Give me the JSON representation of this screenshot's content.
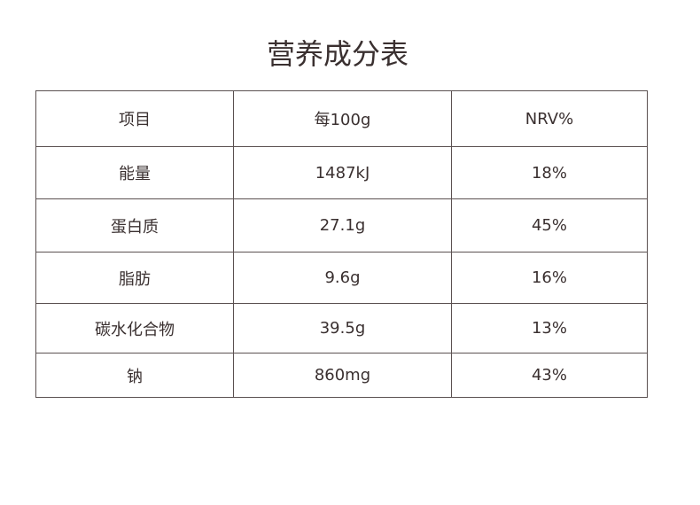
{
  "header": {
    "title": "营养成分表"
  },
  "table": {
    "columns": [
      "项目",
      "每100g",
      "NRV%"
    ],
    "rows": [
      [
        "能量",
        "1487kJ",
        "18%"
      ],
      [
        "蛋白质",
        "27.1g",
        "45%"
      ],
      [
        "脂肪",
        "9.6g",
        "16%"
      ],
      [
        "碳水化合物",
        "39.5g",
        "13%"
      ],
      [
        "钠",
        "860mg",
        "43%"
      ]
    ]
  }
}
